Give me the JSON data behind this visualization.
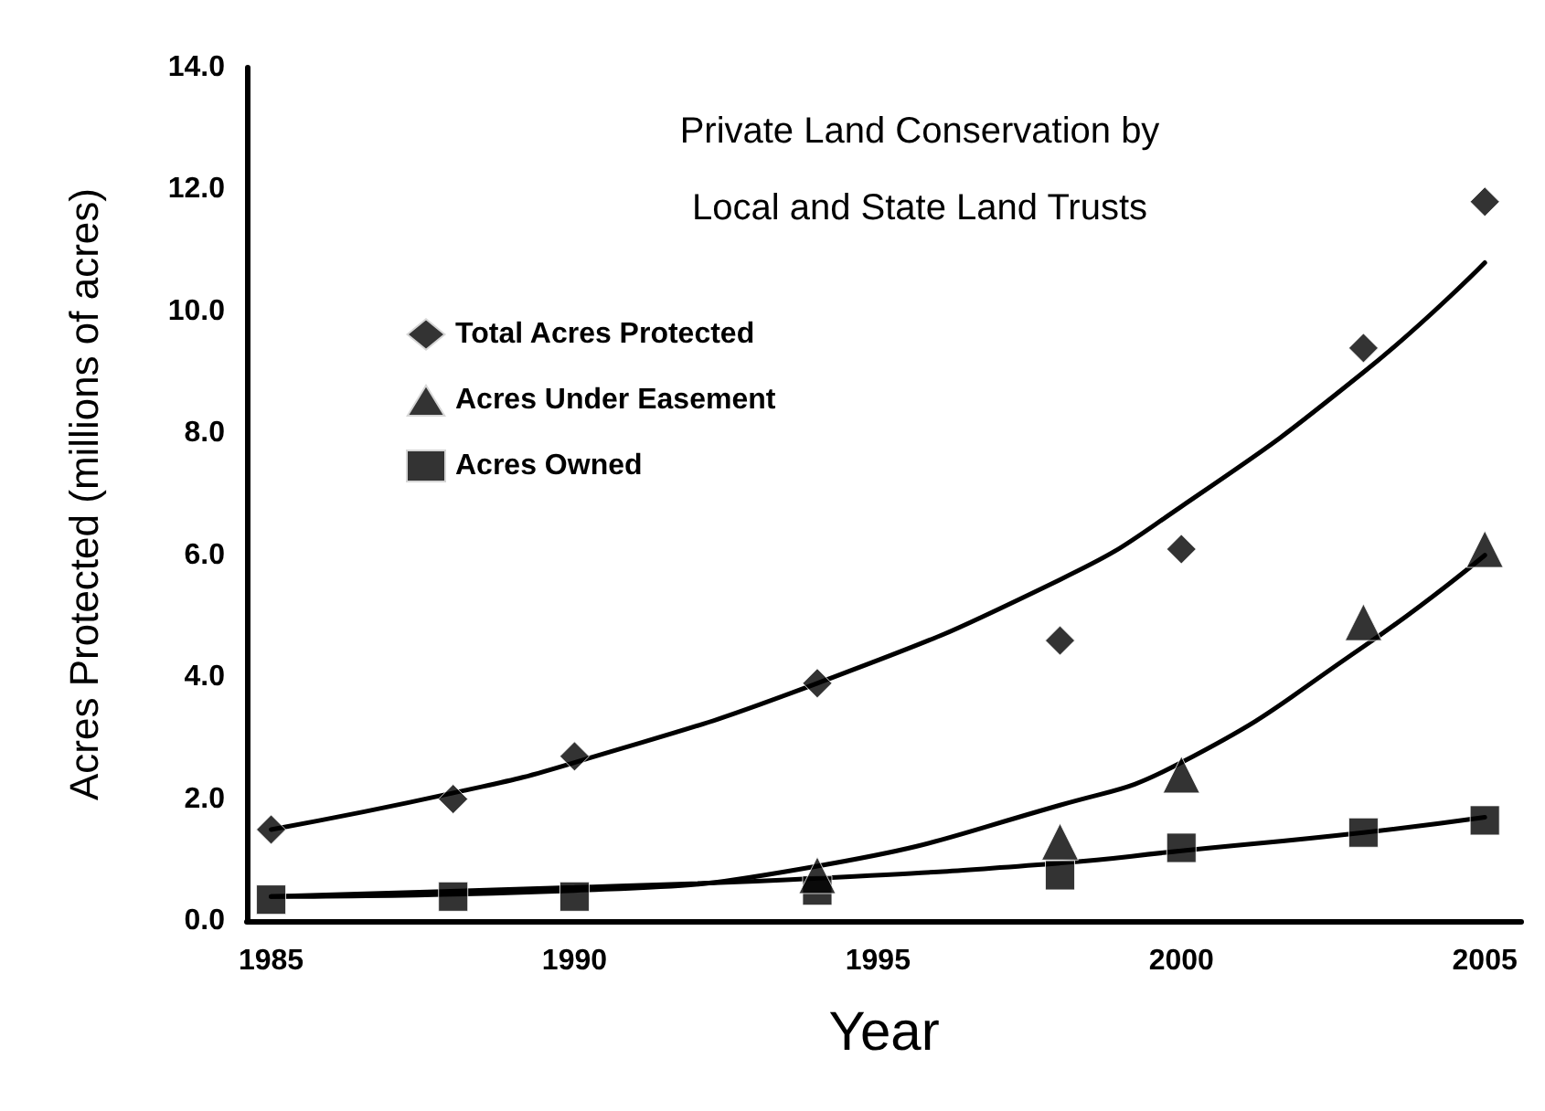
{
  "chart_data": {
    "type": "scatter",
    "title": "Private Land Conservation by\nLocal and State Land Trusts",
    "xlabel": "Year",
    "ylabel": "Acres Protected (millions of acres)",
    "xlim": [
      1984.6,
      2005.6
    ],
    "xticks": [
      1985,
      1990,
      1995,
      2000,
      2005
    ],
    "ylim": [
      0,
      14
    ],
    "yticks": [
      {
        "value": 0,
        "label": "0.0"
      },
      {
        "value": 2,
        "label": "2.0"
      },
      {
        "value": 4,
        "label": "4.0"
      },
      {
        "value": 6,
        "label": "6.0"
      },
      {
        "value": 8,
        "label": "8.0"
      },
      {
        "value": 10,
        "label": "10.0"
      },
      {
        "value": 12,
        "label": "12.0"
      },
      {
        "value": 14,
        "label": "14.0"
      }
    ],
    "grid": false,
    "legend": "top left",
    "x": [
      1985,
      1988,
      1990,
      1994,
      1998,
      2000,
      2003,
      2005
    ],
    "series": [
      {
        "name": "Total Acres Protected",
        "color": "#000000",
        "marker": "diamond",
        "values": [
          1.5,
          2.0,
          2.7,
          3.9,
          4.6,
          6.1,
          9.4,
          11.8
        ]
      },
      {
        "name": "Acres Under Easement",
        "color": "#000000",
        "marker": "triangle",
        "values": [
          null,
          null,
          null,
          0.75,
          1.3,
          2.4,
          4.9,
          6.1
        ]
      },
      {
        "name": "Acres Owned",
        "color": "#000000",
        "marker": "square",
        "values": [
          0.35,
          0.4,
          0.4,
          0.5,
          0.75,
          1.2,
          1.45,
          1.65
        ]
      },
      {
        "type": "line",
        "color": "#000000",
        "marker": "none",
        "line_style": "solid",
        "x": [
          1985,
          1988,
          1990,
          1994,
          1998,
          2000,
          2003,
          2005
        ],
        "values": [
          1.5,
          2.1,
          2.6,
          3.9,
          5.6,
          6.8,
          9.0,
          10.8
        ]
      },
      {
        "type": "line",
        "color": "#000000",
        "marker": "none",
        "line_style": "solid",
        "x": [
          1985,
          1990,
          1994,
          1998,
          2000,
          2003,
          2005
        ],
        "values": [
          0.4,
          0.5,
          0.9,
          1.9,
          2.6,
          4.5,
          6.0
        ]
      },
      {
        "type": "line",
        "color": "#000000",
        "marker": "none",
        "line_style": "solid",
        "x": [
          1985,
          1990,
          1994,
          1998,
          2000,
          2003,
          2005
        ],
        "values": [
          0.4,
          0.55,
          0.7,
          0.95,
          1.15,
          1.45,
          1.7
        ]
      }
    ]
  }
}
